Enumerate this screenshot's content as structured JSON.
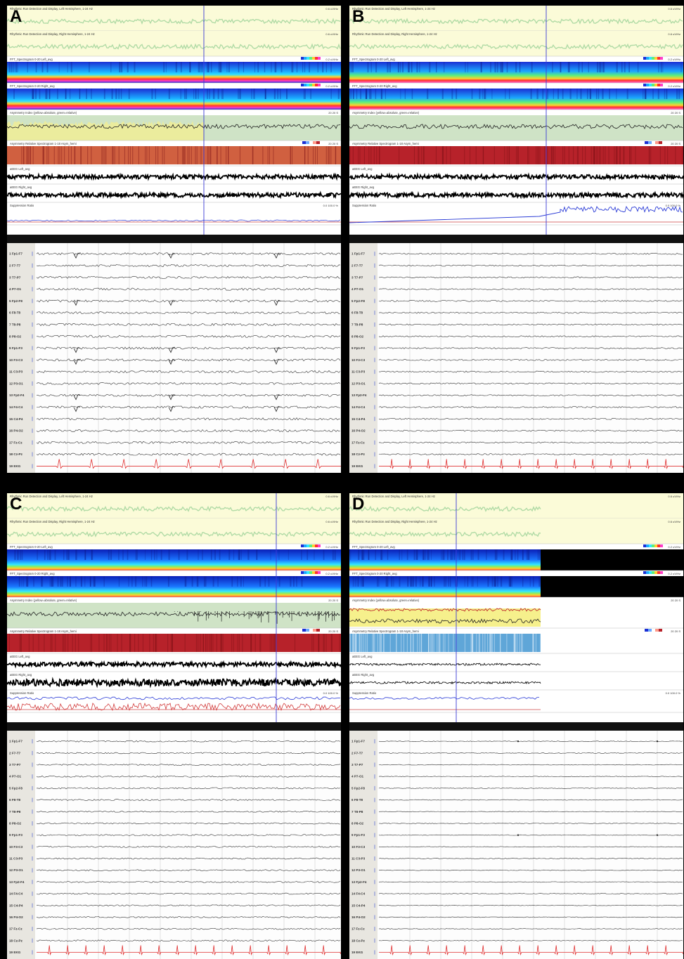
{
  "panels": [
    {
      "id": "A",
      "letter": "A",
      "state": "A"
    },
    {
      "id": "B",
      "letter": "B",
      "state": "B"
    },
    {
      "id": "C",
      "letter": "C",
      "state": "C"
    },
    {
      "id": "D",
      "letter": "D",
      "state": "D"
    }
  ],
  "trend_titles": [
    "Rhythmic Run Detection and Display, Left Hemisphere, 1-24 Hz",
    "Rhythmic Run Detection and Display, Right Hemisphere, 1-24 Hz",
    "FFT_Spectrogram 0-20 Left_avg",
    "FFT_Spectrogram 0-20 Right_avg",
    "Asymmetry Index (yellow=absolute, green=relative)",
    "Asymmetry Relative Spectrogram 1-18 Asym_hemi",
    "aEEG Left_avg",
    "aEEG Right_avg",
    "Suppression Ratio"
  ],
  "trend_scales": [
    "0.6 uV/Hz",
    "0.6 uV/Hz",
    "0.2 uV/Hz",
    "0.2 uV/Hz",
    "20 20 S",
    "20 20 S",
    "",
    "",
    "0.0 100.0 %"
  ],
  "channels": [
    "1 Fp1-F7",
    "2 F7-T7",
    "3 T7-P7",
    "4 P7-O1",
    "5 Fp2-F8",
    "6 F8-T8",
    "7 T8-P8",
    "8 P8-O2",
    "9 Fp1-F3",
    "10 F3-C3",
    "11 C3-P3",
    "12 P3-O1",
    "13 Fp2-F4",
    "14 F4-C4",
    "15 C4-P4",
    "16 P4-O2",
    "17 Fz-Cz",
    "18 Cz-Pz",
    "19 EKG"
  ],
  "colors": {
    "ekg": "#e03030",
    "cursor": "#3b3bd6",
    "trace": "#333333",
    "supp_blue": "#2a3bd6",
    "supp_red": "#d23a3a"
  }
}
